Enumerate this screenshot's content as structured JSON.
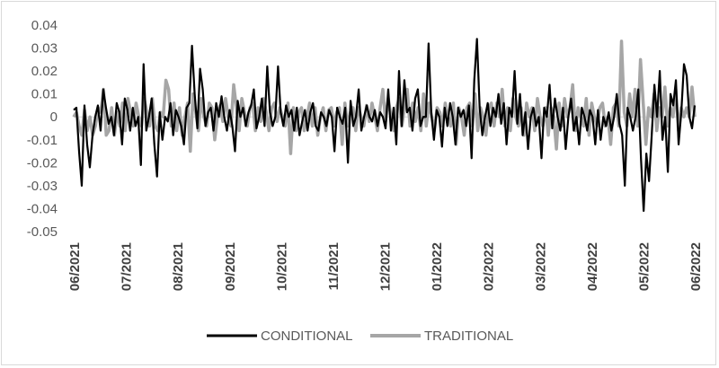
{
  "chart_data": {
    "type": "line",
    "title": "",
    "xlabel": "",
    "ylabel": "",
    "ylim": [
      -0.05,
      0.04
    ],
    "y_ticks": [
      "0.04",
      "0.03",
      "0.02",
      "0.01",
      "0",
      "-0.01",
      "-0.02",
      "-0.03",
      "-0.04",
      "-0.05"
    ],
    "x_ticks": [
      "06/2021",
      "07/2021",
      "08/2021",
      "09/2021",
      "10/2021",
      "11/2021",
      "12/2021",
      "01/2022",
      "02/2022",
      "03/2022",
      "04/2022",
      "05/2022",
      "06/2022"
    ],
    "grid": false,
    "legend_position": "bottom",
    "series": [
      {
        "name": "CONDITIONAL",
        "color": "#000000",
        "values": [
          0.003,
          0.004,
          -0.015,
          -0.03,
          0.005,
          -0.012,
          -0.022,
          -0.008,
          0.0,
          0.005,
          -0.006,
          0.012,
          0.004,
          -0.003,
          0.0,
          -0.008,
          0.006,
          0.002,
          -0.012,
          0.008,
          0.003,
          -0.006,
          0.004,
          -0.004,
          0.0,
          -0.021,
          0.023,
          -0.006,
          0.0,
          0.008,
          -0.012,
          -0.026,
          0.002,
          -0.01,
          0.0,
          -0.002,
          0.006,
          -0.008,
          0.003,
          0.0,
          -0.004,
          -0.012,
          0.004,
          0.006,
          0.031,
          0.01,
          -0.005,
          0.021,
          0.012,
          -0.004,
          0.002,
          0.004,
          -0.006,
          0.006,
          0.0,
          0.009,
          0.0,
          -0.006,
          0.003,
          -0.004,
          -0.015,
          0.007,
          0.0,
          0.004,
          -0.004,
          0.002,
          0.005,
          0.012,
          -0.005,
          0.0,
          0.008,
          -0.004,
          0.022,
          0.002,
          -0.004,
          0.0,
          0.022,
          0.002,
          -0.004,
          0.005,
          0.0,
          0.003,
          -0.006,
          0.004,
          -0.008,
          -0.002,
          0.003,
          -0.006,
          0.002,
          0.006,
          -0.004,
          -0.006,
          0.002,
          0.0,
          -0.004,
          0.003,
          0.0,
          -0.015,
          0.004,
          0.0,
          -0.003,
          0.004,
          -0.02,
          0.007,
          -0.004,
          0.0,
          0.012,
          -0.006,
          0.0,
          0.005,
          0.0,
          -0.002,
          0.003,
          -0.004,
          0.002,
          0.0,
          -0.005,
          0.012,
          -0.006,
          0.004,
          -0.012,
          0.02,
          -0.004,
          0.016,
          0.002,
          0.004,
          -0.006,
          0.008,
          0.012,
          -0.004,
          0.0,
          0.0,
          0.032,
          0.002,
          -0.01,
          0.003,
          0.0,
          -0.013,
          0.004,
          -0.004,
          0.006,
          0.0,
          -0.012,
          0.004,
          0.0,
          0.003,
          -0.004,
          0.005,
          -0.018,
          0.016,
          0.034,
          0.004,
          -0.008,
          0.0,
          0.006,
          -0.004,
          0.004,
          0.0,
          0.01,
          -0.003,
          0.006,
          -0.012,
          0.004,
          0.0,
          0.02,
          -0.003,
          0.01,
          -0.008,
          0.002,
          -0.014,
          0.0,
          0.004,
          -0.004,
          0.0,
          -0.018,
          0.004,
          0.0,
          0.014,
          -0.005,
          0.008,
          0.0,
          -0.006,
          0.004,
          -0.014,
          0.0,
          0.008,
          -0.006,
          0.0,
          -0.012,
          0.004,
          0.0,
          -0.006,
          0.003,
          0.0,
          -0.012,
          0.003,
          -0.01,
          0.0,
          -0.004,
          0.002,
          -0.006,
          0.0,
          0.01,
          -0.003,
          -0.008,
          -0.03,
          0.004,
          0.0,
          -0.006,
          0.0,
          0.012,
          -0.018,
          -0.041,
          -0.016,
          -0.028,
          -0.008,
          0.014,
          0.0,
          0.02,
          -0.01,
          0.0,
          -0.024,
          0.01,
          0.005,
          0.016,
          -0.012,
          0.002,
          0.023,
          0.018,
          0.0,
          -0.005,
          0.005
        ]
      },
      {
        "name": "TRADITIONAL",
        "color": "#a6a6a6",
        "values": [
          0.0,
          0.002,
          -0.004,
          -0.008,
          0.003,
          -0.006,
          0.0,
          -0.008,
          -0.004,
          0.004,
          0.002,
          0.012,
          -0.008,
          -0.006,
          0.004,
          -0.008,
          0.002,
          -0.004,
          0.006,
          -0.006,
          0.008,
          0.002,
          -0.004,
          0.006,
          0.0,
          -0.004,
          0.008,
          0.002,
          -0.004,
          0.008,
          -0.004,
          -0.006,
          0.002,
          0.0,
          0.016,
          0.012,
          -0.004,
          0.006,
          -0.006,
          0.004,
          -0.008,
          0.0,
          0.006,
          -0.015,
          0.01,
          0.002,
          -0.006,
          0.008,
          0.0,
          -0.004,
          0.006,
          0.004,
          -0.01,
          0.0,
          0.005,
          -0.002,
          0.008,
          0.0,
          -0.004,
          0.014,
          0.004,
          -0.006,
          0.008,
          0.002,
          -0.004,
          0.004,
          0.006,
          -0.006,
          0.004,
          -0.002,
          0.008,
          0.002,
          -0.006,
          0.004,
          0.006,
          -0.002,
          0.004,
          0.0,
          -0.004,
          0.006,
          -0.016,
          0.004,
          -0.006,
          0.002,
          0.004,
          -0.006,
          0.0,
          0.006,
          -0.004,
          0.004,
          -0.008,
          0.0,
          0.004,
          -0.006,
          0.003,
          0.004,
          -0.004,
          0.002,
          0.004,
          -0.012,
          0.006,
          -0.004,
          0.002,
          0.004,
          -0.006,
          0.004,
          0.0,
          -0.004,
          0.005,
          -0.002,
          0.006,
          0.0,
          -0.006,
          0.004,
          0.012,
          -0.002,
          0.008,
          0.0,
          -0.006,
          0.004,
          0.008,
          -0.004,
          0.004,
          0.012,
          -0.004,
          0.006,
          -0.002,
          0.004,
          -0.006,
          0.01,
          -0.004,
          0.006,
          0.0,
          -0.006,
          0.004,
          0.002,
          -0.004,
          0.006,
          0.0,
          -0.004,
          0.006,
          -0.012,
          0.004,
          0.0,
          -0.008,
          0.004,
          0.006,
          -0.004,
          0.01,
          -0.006,
          0.004,
          0.0,
          -0.008,
          0.004,
          0.006,
          -0.004,
          0.006,
          0.0,
          0.012,
          -0.004,
          0.004,
          -0.006,
          0.008,
          0.0,
          -0.004,
          0.004,
          -0.008,
          0.006,
          0.0,
          0.004,
          -0.006,
          0.008,
          0.0,
          -0.004,
          0.004,
          -0.008,
          0.004,
          0.0,
          -0.014,
          0.006,
          -0.004,
          0.008,
          0.0,
          0.004,
          0.014,
          -0.006,
          0.004,
          0.0,
          -0.004,
          0.008,
          -0.008,
          0.006,
          0.0,
          -0.004,
          0.004,
          0.006,
          -0.004,
          0.0,
          -0.012,
          0.004,
          0.006,
          -0.004,
          0.033,
          0.002,
          -0.004,
          0.01,
          0.0,
          0.012,
          -0.004,
          0.025,
          0.006,
          -0.012,
          0.004,
          0.0,
          0.01,
          -0.006,
          0.004,
          0.0,
          0.013,
          -0.004,
          0.004,
          0.0,
          0.012,
          -0.006,
          0.004,
          0.0,
          0.004,
          0.0,
          0.013,
          0.0
        ]
      }
    ]
  }
}
